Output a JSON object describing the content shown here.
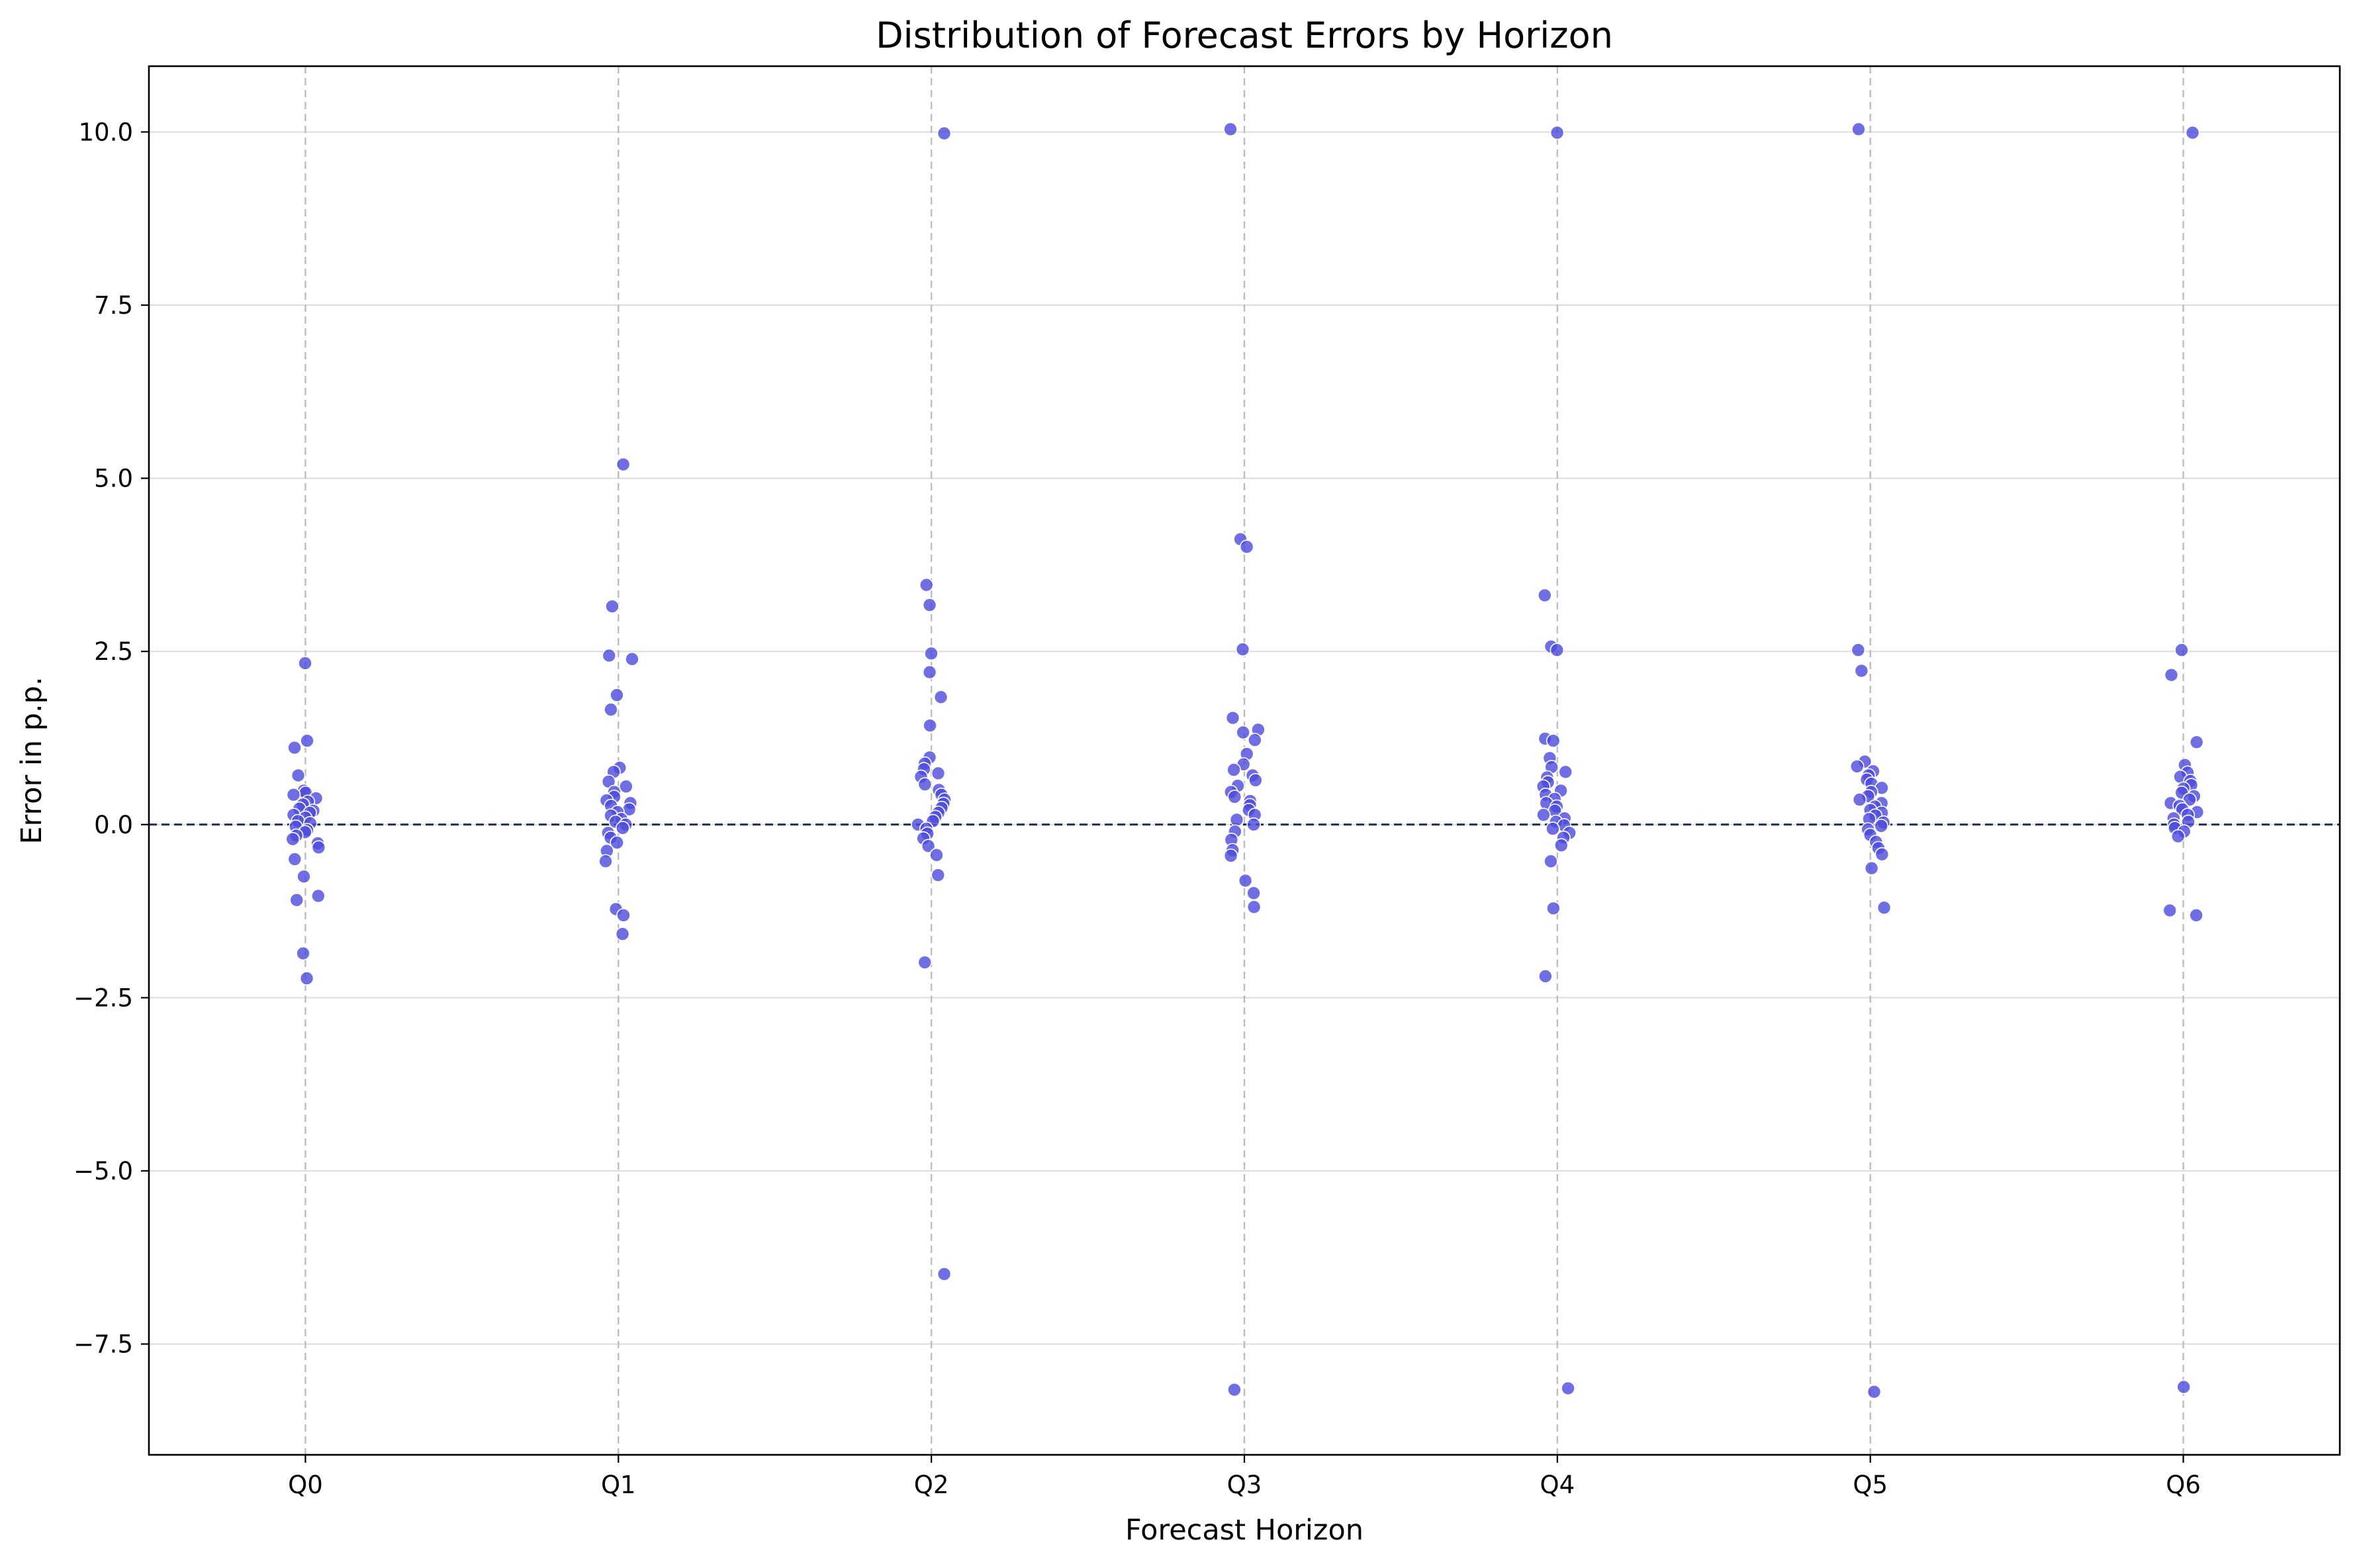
{
  "chart_data": {
    "type": "scatter",
    "title": "Distribution of Forecast Errors by Horizon",
    "xlabel": "Forecast Horizon",
    "ylabel": "Error in p.p.",
    "categories": [
      "Q0",
      "Q1",
      "Q2",
      "Q3",
      "Q4",
      "Q5",
      "Q6"
    ],
    "ylim": [
      -9.1,
      10.95
    ],
    "yticks": [
      -7.5,
      -5.0,
      -2.5,
      0.0,
      2.5,
      5.0,
      7.5,
      10.0
    ],
    "ytick_labels": [
      "−7.5",
      "−5.0",
      "−2.5",
      "0.0",
      "2.5",
      "5.0",
      "7.5",
      "10.0"
    ],
    "reference_line": {
      "y": 0,
      "style": "dashed"
    },
    "grid": {
      "horizontal": true,
      "vertical_dashed_at_categories": true
    },
    "marker_color": "#4b4bdc",
    "series": [
      {
        "category": "Q0",
        "points": [
          {
            "x": 0,
            "y": 2.33
          },
          {
            "x": 0,
            "y": 1.21
          },
          {
            "x": 0,
            "y": 1.11
          },
          {
            "x": 0,
            "y": 0.71
          },
          {
            "x": 0,
            "y": 0.49
          },
          {
            "x": 0,
            "y": 0.46
          },
          {
            "x": 0,
            "y": 0.43
          },
          {
            "x": 0,
            "y": 0.38
          },
          {
            "x": 0,
            "y": 0.33
          },
          {
            "x": 0,
            "y": 0.29
          },
          {
            "x": 0,
            "y": 0.23
          },
          {
            "x": 0,
            "y": 0.2
          },
          {
            "x": 0,
            "y": 0.17
          },
          {
            "x": 0,
            "y": 0.14
          },
          {
            "x": 0,
            "y": 0.1
          },
          {
            "x": 0,
            "y": 0.05
          },
          {
            "x": 0,
            "y": 0.02
          },
          {
            "x": 0,
            "y": -0.03
          },
          {
            "x": 0,
            "y": -0.08
          },
          {
            "x": 0,
            "y": -0.11
          },
          {
            "x": 0,
            "y": -0.16
          },
          {
            "x": 0,
            "y": -0.21
          },
          {
            "x": 0,
            "y": -0.27
          },
          {
            "x": 0,
            "y": -0.33
          },
          {
            "x": 0,
            "y": -0.5
          },
          {
            "x": 0,
            "y": -0.75
          },
          {
            "x": 0,
            "y": -1.03
          },
          {
            "x": 0,
            "y": -1.09
          },
          {
            "x": 0,
            "y": -1.86
          },
          {
            "x": 0,
            "y": -2.22
          }
        ]
      },
      {
        "category": "Q1",
        "points": [
          {
            "x": 1,
            "y": 5.2
          },
          {
            "x": 1,
            "y": 3.15
          },
          {
            "x": 1,
            "y": 2.44
          },
          {
            "x": 1,
            "y": 2.39
          },
          {
            "x": 1,
            "y": 1.87
          },
          {
            "x": 1,
            "y": 1.66
          },
          {
            "x": 1,
            "y": 0.82
          },
          {
            "x": 1,
            "y": 0.76
          },
          {
            "x": 1,
            "y": 0.62
          },
          {
            "x": 1,
            "y": 0.55
          },
          {
            "x": 1,
            "y": 0.47
          },
          {
            "x": 1,
            "y": 0.4
          },
          {
            "x": 1,
            "y": 0.35
          },
          {
            "x": 1,
            "y": 0.31
          },
          {
            "x": 1,
            "y": 0.27
          },
          {
            "x": 1,
            "y": 0.22
          },
          {
            "x": 1,
            "y": 0.18
          },
          {
            "x": 1,
            "y": 0.13
          },
          {
            "x": 1,
            "y": 0.08
          },
          {
            "x": 1,
            "y": 0.04
          },
          {
            "x": 1,
            "y": 0.0
          },
          {
            "x": 1,
            "y": -0.05
          },
          {
            "x": 1,
            "y": -0.12
          },
          {
            "x": 1,
            "y": -0.19
          },
          {
            "x": 1,
            "y": -0.26
          },
          {
            "x": 1,
            "y": -0.38
          },
          {
            "x": 1,
            "y": -0.53
          },
          {
            "x": 1,
            "y": -1.22
          },
          {
            "x": 1,
            "y": -1.31
          },
          {
            "x": 1,
            "y": -1.58
          }
        ]
      },
      {
        "category": "Q2",
        "points": [
          {
            "x": 2,
            "y": 9.98
          },
          {
            "x": 2,
            "y": 3.46
          },
          {
            "x": 2,
            "y": 3.17
          },
          {
            "x": 2,
            "y": 2.47
          },
          {
            "x": 2,
            "y": 2.2
          },
          {
            "x": 2,
            "y": 1.84
          },
          {
            "x": 2,
            "y": 1.43
          },
          {
            "x": 2,
            "y": 0.97
          },
          {
            "x": 2,
            "y": 0.88
          },
          {
            "x": 2,
            "y": 0.8
          },
          {
            "x": 2,
            "y": 0.74
          },
          {
            "x": 2,
            "y": 0.69
          },
          {
            "x": 2,
            "y": 0.58
          },
          {
            "x": 2,
            "y": 0.5
          },
          {
            "x": 2,
            "y": 0.43
          },
          {
            "x": 2,
            "y": 0.36
          },
          {
            "x": 2,
            "y": 0.3
          },
          {
            "x": 2,
            "y": 0.24
          },
          {
            "x": 2,
            "y": 0.17
          },
          {
            "x": 2,
            "y": 0.11
          },
          {
            "x": 2,
            "y": 0.05
          },
          {
            "x": 2,
            "y": 0.0
          },
          {
            "x": 2,
            "y": -0.06
          },
          {
            "x": 2,
            "y": -0.13
          },
          {
            "x": 2,
            "y": -0.2
          },
          {
            "x": 2,
            "y": -0.31
          },
          {
            "x": 2,
            "y": -0.44
          },
          {
            "x": 2,
            "y": -0.73
          },
          {
            "x": 2,
            "y": -1.99
          },
          {
            "x": 2,
            "y": -6.49
          }
        ]
      },
      {
        "category": "Q3",
        "points": [
          {
            "x": 3,
            "y": 10.04
          },
          {
            "x": 3,
            "y": 4.12
          },
          {
            "x": 3,
            "y": 4.01
          },
          {
            "x": 3,
            "y": 2.53
          },
          {
            "x": 3,
            "y": 1.54
          },
          {
            "x": 3,
            "y": 1.37
          },
          {
            "x": 3,
            "y": 1.33
          },
          {
            "x": 3,
            "y": 1.22
          },
          {
            "x": 3,
            "y": 1.02
          },
          {
            "x": 3,
            "y": 0.87
          },
          {
            "x": 3,
            "y": 0.79
          },
          {
            "x": 3,
            "y": 0.71
          },
          {
            "x": 3,
            "y": 0.64
          },
          {
            "x": 3,
            "y": 0.56
          },
          {
            "x": 3,
            "y": 0.47
          },
          {
            "x": 3,
            "y": 0.4
          },
          {
            "x": 3,
            "y": 0.34
          },
          {
            "x": 3,
            "y": 0.28
          },
          {
            "x": 3,
            "y": 0.21
          },
          {
            "x": 3,
            "y": 0.14
          },
          {
            "x": 3,
            "y": 0.07
          },
          {
            "x": 3,
            "y": 0.0
          },
          {
            "x": 3,
            "y": -0.1
          },
          {
            "x": 3,
            "y": -0.22
          },
          {
            "x": 3,
            "y": -0.37
          },
          {
            "x": 3,
            "y": -0.45
          },
          {
            "x": 3,
            "y": -0.81
          },
          {
            "x": 3,
            "y": -0.99
          },
          {
            "x": 3,
            "y": -1.19
          },
          {
            "x": 3,
            "y": -8.16
          }
        ]
      },
      {
        "category": "Q4",
        "points": [
          {
            "x": 4,
            "y": 9.99
          },
          {
            "x": 4,
            "y": 3.31
          },
          {
            "x": 4,
            "y": 2.57
          },
          {
            "x": 4,
            "y": 2.52
          },
          {
            "x": 4,
            "y": 1.24
          },
          {
            "x": 4,
            "y": 1.21
          },
          {
            "x": 4,
            "y": 0.96
          },
          {
            "x": 4,
            "y": 0.83
          },
          {
            "x": 4,
            "y": 0.76
          },
          {
            "x": 4,
            "y": 0.68
          },
          {
            "x": 4,
            "y": 0.61
          },
          {
            "x": 4,
            "y": 0.55
          },
          {
            "x": 4,
            "y": 0.49
          },
          {
            "x": 4,
            "y": 0.43
          },
          {
            "x": 4,
            "y": 0.37
          },
          {
            "x": 4,
            "y": 0.31
          },
          {
            "x": 4,
            "y": 0.26
          },
          {
            "x": 4,
            "y": 0.2
          },
          {
            "x": 4,
            "y": 0.14
          },
          {
            "x": 4,
            "y": 0.09
          },
          {
            "x": 4,
            "y": 0.04
          },
          {
            "x": 4,
            "y": -0.01
          },
          {
            "x": 4,
            "y": -0.06
          },
          {
            "x": 4,
            "y": -0.12
          },
          {
            "x": 4,
            "y": -0.19
          },
          {
            "x": 4,
            "y": -0.3
          },
          {
            "x": 4,
            "y": -0.53
          },
          {
            "x": 4,
            "y": -1.21
          },
          {
            "x": 4,
            "y": -2.19
          },
          {
            "x": 4,
            "y": -8.14
          }
        ]
      },
      {
        "category": "Q5",
        "points": [
          {
            "x": 5,
            "y": 10.04
          },
          {
            "x": 5,
            "y": 2.52
          },
          {
            "x": 5,
            "y": 2.22
          },
          {
            "x": 5,
            "y": 0.91
          },
          {
            "x": 5,
            "y": 0.84
          },
          {
            "x": 5,
            "y": 0.77
          },
          {
            "x": 5,
            "y": 0.71
          },
          {
            "x": 5,
            "y": 0.65
          },
          {
            "x": 5,
            "y": 0.59
          },
          {
            "x": 5,
            "y": 0.53
          },
          {
            "x": 5,
            "y": 0.47
          },
          {
            "x": 5,
            "y": 0.41
          },
          {
            "x": 5,
            "y": 0.36
          },
          {
            "x": 5,
            "y": 0.31
          },
          {
            "x": 5,
            "y": 0.26
          },
          {
            "x": 5,
            "y": 0.21
          },
          {
            "x": 5,
            "y": 0.17
          },
          {
            "x": 5,
            "y": 0.13
          },
          {
            "x": 5,
            "y": 0.08
          },
          {
            "x": 5,
            "y": 0.03
          },
          {
            "x": 5,
            "y": -0.02
          },
          {
            "x": 5,
            "y": -0.07
          },
          {
            "x": 5,
            "y": -0.15
          },
          {
            "x": 5,
            "y": -0.25
          },
          {
            "x": 5,
            "y": -0.34
          },
          {
            "x": 5,
            "y": -0.43
          },
          {
            "x": 5,
            "y": -0.63
          },
          {
            "x": 5,
            "y": -1.2
          },
          {
            "x": 5,
            "y": -8.19
          }
        ]
      },
      {
        "category": "Q6",
        "points": [
          {
            "x": 6,
            "y": 9.99
          },
          {
            "x": 6,
            "y": 2.52
          },
          {
            "x": 6,
            "y": 2.16
          },
          {
            "x": 6,
            "y": 1.19
          },
          {
            "x": 6,
            "y": 0.86
          },
          {
            "x": 6,
            "y": 0.75
          },
          {
            "x": 6,
            "y": 0.69
          },
          {
            "x": 6,
            "y": 0.63
          },
          {
            "x": 6,
            "y": 0.57
          },
          {
            "x": 6,
            "y": 0.52
          },
          {
            "x": 6,
            "y": 0.46
          },
          {
            "x": 6,
            "y": 0.41
          },
          {
            "x": 6,
            "y": 0.36
          },
          {
            "x": 6,
            "y": 0.31
          },
          {
            "x": 6,
            "y": 0.27
          },
          {
            "x": 6,
            "y": 0.22
          },
          {
            "x": 6,
            "y": 0.18
          },
          {
            "x": 6,
            "y": 0.14
          },
          {
            "x": 6,
            "y": 0.09
          },
          {
            "x": 6,
            "y": 0.04
          },
          {
            "x": 6,
            "y": 0.0
          },
          {
            "x": 6,
            "y": -0.05
          },
          {
            "x": 6,
            "y": -0.1
          },
          {
            "x": 6,
            "y": -0.17
          },
          {
            "x": 6,
            "y": -1.24
          },
          {
            "x": 6,
            "y": -1.31
          },
          {
            "x": 6,
            "y": -8.12
          }
        ]
      }
    ]
  }
}
